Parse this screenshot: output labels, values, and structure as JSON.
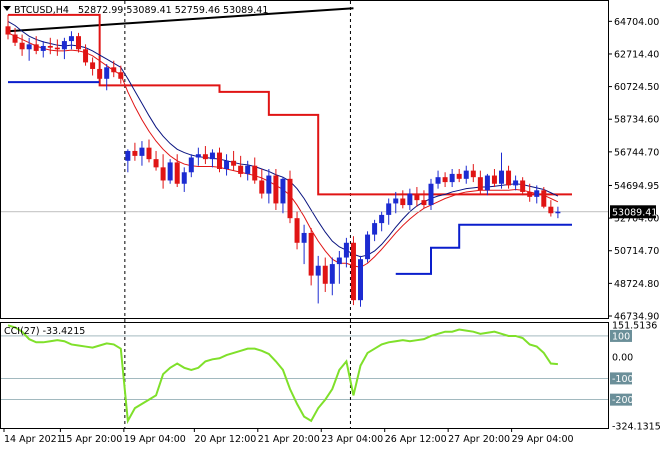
{
  "header": {
    "symbol": "BTCUSD,H4",
    "ohlc": "52872.99 53089.41 52759.46 53089.41"
  },
  "chart_data": [
    {
      "type": "candlestick",
      "symbol": "BTCUSD",
      "timeframe": "H4",
      "ylim": [
        46734.9,
        65700
      ],
      "ytick_labels": [
        "64704.00",
        "62714.40",
        "60724.50",
        "58734.60",
        "56744.70",
        "54694.95",
        "52704.00",
        "50714.70",
        "48724.80",
        "46734.90"
      ],
      "ytick_values": [
        64704.0,
        62714.4,
        60724.5,
        58734.6,
        56744.7,
        54694.95,
        52704.0,
        50714.7,
        48724.8,
        46734.9
      ],
      "current_price_label": "53089.41",
      "current_price": 53089.41,
      "xtick_labels": [
        "14 Apr 2021",
        "15 Apr 20:00",
        "19 Apr 04:00",
        "20 Apr 12:00",
        "21 Apr 20:00",
        "23 Apr 04:00",
        "26 Apr 12:00",
        "27 Apr 20:00",
        "29 Apr 04:00"
      ],
      "colors": {
        "up": "#1c2bd1",
        "down": "#e01414",
        "ma_thin": "#0a1480",
        "ma_red": "#e01414",
        "step_red": "#e01414",
        "step_blue": "#0a1ecc",
        "trendline": "#000000",
        "vline": "#000000"
      },
      "candles": [
        [
          64400,
          65100,
          63600,
          63900
        ],
        [
          63900,
          64300,
          63200,
          63400
        ],
        [
          63400,
          63900,
          62600,
          63000
        ],
        [
          63000,
          63700,
          62300,
          63300
        ],
        [
          63300,
          63800,
          62700,
          62900
        ],
        [
          62900,
          63500,
          62500,
          63200
        ],
        [
          63200,
          63700,
          62700,
          63100
        ],
        [
          63100,
          63600,
          62600,
          63000
        ],
        [
          63000,
          63700,
          62400,
          63500
        ],
        [
          63500,
          64100,
          63000,
          63800
        ],
        [
          63800,
          64000,
          62800,
          63000
        ],
        [
          63000,
          63300,
          62000,
          62200
        ],
        [
          62200,
          62500,
          61400,
          61800
        ],
        [
          61800,
          62400,
          60900,
          61200
        ],
        [
          61200,
          62100,
          60500,
          61900
        ],
        [
          61900,
          62300,
          61300,
          61600
        ],
        [
          61600,
          62000,
          60900,
          61200
        ],
        [
          56200,
          56900,
          55500,
          56800
        ],
        [
          56800,
          57300,
          56200,
          56500
        ],
        [
          56500,
          57400,
          55900,
          57000
        ],
        [
          57000,
          57500,
          56100,
          56300
        ],
        [
          56300,
          56800,
          55600,
          55800
        ],
        [
          55800,
          56600,
          54500,
          55000
        ],
        [
          55000,
          56300,
          54800,
          56100
        ],
        [
          56100,
          56600,
          54600,
          54800
        ],
        [
          54800,
          55800,
          54300,
          55500
        ],
        [
          55500,
          56600,
          55200,
          56400
        ],
        [
          56400,
          57000,
          55900,
          56600
        ],
        [
          56600,
          57100,
          56000,
          56300
        ],
        [
          56300,
          56900,
          55800,
          56700
        ],
        [
          56700,
          57000,
          55500,
          55700
        ],
        [
          55700,
          56600,
          55300,
          56200
        ],
        [
          56200,
          56800,
          55600,
          55900
        ],
        [
          55900,
          56500,
          55200,
          55400
        ],
        [
          55400,
          56200,
          55000,
          55900
        ],
        [
          55900,
          56400,
          54800,
          55000
        ],
        [
          55000,
          55700,
          53900,
          54200
        ],
        [
          54200,
          55700,
          53600,
          55300
        ],
        [
          55300,
          55700,
          53200,
          53600
        ],
        [
          53600,
          55200,
          53000,
          55100
        ],
        [
          55100,
          55600,
          52400,
          52700
        ],
        [
          52700,
          53100,
          50800,
          51200
        ],
        [
          51200,
          52300,
          49900,
          51800
        ],
        [
          51800,
          52100,
          48600,
          49200
        ],
        [
          49200,
          50400,
          47500,
          49800
        ],
        [
          49800,
          50300,
          48200,
          48700
        ],
        [
          48700,
          50300,
          48000,
          49900
        ],
        [
          49900,
          50700,
          48700,
          50300
        ],
        [
          50300,
          51500,
          49700,
          51200
        ],
        [
          51200,
          51600,
          47400,
          47700
        ],
        [
          47700,
          50400,
          47300,
          50200
        ],
        [
          50200,
          51900,
          50000,
          51700
        ],
        [
          51700,
          52600,
          51300,
          52400
        ],
        [
          52400,
          53100,
          51900,
          52900
        ],
        [
          52900,
          53900,
          52300,
          53600
        ],
        [
          53600,
          54300,
          53000,
          53900
        ],
        [
          53900,
          54400,
          53300,
          53500
        ],
        [
          53500,
          54500,
          53200,
          54200
        ],
        [
          54200,
          54600,
          53400,
          53800
        ],
        [
          53800,
          54400,
          53300,
          53500
        ],
        [
          53500,
          55100,
          53200,
          54800
        ],
        [
          54800,
          55600,
          54500,
          55200
        ],
        [
          55200,
          55500,
          54600,
          54900
        ],
        [
          54900,
          55700,
          54600,
          55400
        ],
        [
          55400,
          55700,
          54900,
          55100
        ],
        [
          55100,
          55900,
          54800,
          55600
        ],
        [
          55600,
          56000,
          54900,
          55200
        ],
        [
          55200,
          55600,
          54200,
          54400
        ],
        [
          54400,
          55400,
          54100,
          55300
        ],
        [
          55300,
          55700,
          54600,
          54800
        ],
        [
          54800,
          56700,
          54500,
          55600
        ],
        [
          55600,
          55900,
          54500,
          54700
        ],
        [
          54700,
          55300,
          54400,
          55000
        ],
        [
          55000,
          55200,
          54100,
          54300
        ],
        [
          54300,
          54800,
          53700,
          54000
        ],
        [
          54000,
          54700,
          53600,
          54400
        ],
        [
          54400,
          54600,
          53300,
          53400
        ],
        [
          53400,
          53800,
          52800,
          53000
        ],
        [
          53000,
          53400,
          52700,
          53100
        ]
      ],
      "ma_thin": [
        64700,
        64450,
        64100,
        63800,
        63600,
        63450,
        63350,
        63250,
        63200,
        63250,
        63200,
        63100,
        62900,
        62650,
        62400,
        62150,
        61900,
        61200,
        60450,
        59700,
        58950,
        58250,
        57700,
        57250,
        56900,
        56700,
        56550,
        56450,
        56400,
        56350,
        56300,
        56200,
        56100,
        56000,
        55950,
        55850,
        55700,
        55550,
        55350,
        55200,
        54950,
        54500,
        53900,
        53200,
        52500,
        51850,
        51300,
        50950,
        50750,
        50500,
        50350,
        50450,
        50700,
        51100,
        51600,
        52150,
        52650,
        53100,
        53450,
        53700,
        53900,
        54050,
        54150,
        54300,
        54400,
        54500,
        54550,
        54600,
        54600,
        54650,
        54700,
        54750,
        54800,
        54750,
        54650,
        54550,
        54450,
        54250,
        54050
      ],
      "ma_red": [
        64000,
        63800,
        63600,
        63400,
        63200,
        63050,
        62950,
        62900,
        62900,
        62950,
        62900,
        62800,
        62600,
        62300,
        62000,
        61700,
        61450,
        60400,
        59500,
        58700,
        58000,
        57400,
        56900,
        56500,
        56200,
        56000,
        55900,
        55850,
        55850,
        55850,
        55800,
        55700,
        55600,
        55500,
        55400,
        55300,
        55150,
        54950,
        54700,
        54450,
        54100,
        53500,
        52800,
        52000,
        51300,
        50700,
        50200,
        49950,
        49950,
        49800,
        49700,
        49950,
        50350,
        50800,
        51300,
        51800,
        52250,
        52650,
        53000,
        53300,
        53500,
        53700,
        53900,
        54050,
        54200,
        54300,
        54350,
        54400,
        54400,
        54400,
        54400,
        54400,
        54450,
        54400,
        54300,
        54200,
        54100,
        53900,
        53700
      ],
      "step_red": [
        {
          "from": 0,
          "to": 13,
          "value": 65100
        },
        {
          "from": 13,
          "to": 30,
          "value": 60800
        },
        {
          "from": 30,
          "to": 37,
          "value": 60400
        },
        {
          "from": 37,
          "to": 44,
          "value": 59000
        },
        {
          "from": 44,
          "to": 55,
          "value": 54150
        },
        {
          "from": 55,
          "to": 80,
          "value": 54150
        }
      ],
      "step_blue": [
        {
          "from": 0,
          "to": 13,
          "value": 61000
        },
        {
          "from": 55,
          "to": 60,
          "value": 49300
        },
        {
          "from": 60,
          "to": 64,
          "value": 50900
        },
        {
          "from": 64,
          "to": 80,
          "value": 52300
        }
      ],
      "trendline": {
        "from": 0,
        "from_value": 64100,
        "to": 49,
        "to_value": 65500
      },
      "vertical_lines_at": [
        17,
        49
      ]
    },
    {
      "type": "line",
      "indicator": "CCI(27)",
      "title": "CCI(27) -33.4215",
      "ytick_labels": [
        "151.5136",
        "100",
        "0.00",
        "-100",
        "-200",
        "-324.1315"
      ],
      "ytick_values": [
        151.5136,
        100,
        0,
        -100,
        -200,
        -324.1315
      ],
      "ylim": [
        -324.1315,
        151.5136
      ],
      "levels": [
        100,
        -100,
        -200
      ],
      "color": "#7fe02a",
      "values": [
        150,
        140,
        120,
        85,
        70,
        70,
        75,
        80,
        75,
        60,
        55,
        50,
        45,
        55,
        65,
        60,
        40,
        -300,
        -240,
        -220,
        -200,
        -180,
        -80,
        -50,
        -30,
        -50,
        -60,
        -50,
        -20,
        -10,
        -5,
        10,
        20,
        30,
        40,
        40,
        30,
        15,
        -20,
        -60,
        -150,
        -220,
        -280,
        -300,
        -240,
        -200,
        -150,
        -60,
        -20,
        -180,
        -40,
        20,
        40,
        60,
        70,
        75,
        80,
        75,
        80,
        85,
        100,
        110,
        120,
        120,
        130,
        125,
        120,
        110,
        115,
        120,
        110,
        100,
        100,
        90,
        60,
        50,
        20,
        -30,
        -33
      ]
    }
  ]
}
